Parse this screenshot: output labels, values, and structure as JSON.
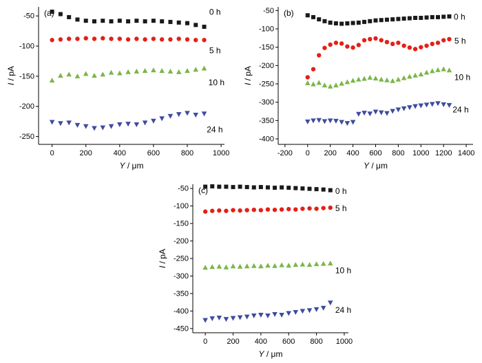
{
  "page": {
    "background": "#ffffff"
  },
  "chart_data": [
    {
      "id": "panel-a",
      "type": "scatter",
      "panel_label": "(a)",
      "xlabel": "Y / μm",
      "ylabel": "I / pA",
      "xlim": [
        -80,
        1020
      ],
      "ylim": [
        -263,
        -35
      ],
      "xticks": [
        0,
        200,
        400,
        600,
        800,
        1000
      ],
      "yticks": [
        -250,
        -200,
        -150,
        -100,
        -50
      ],
      "grid": false,
      "x": [
        0,
        50,
        100,
        150,
        200,
        250,
        300,
        350,
        400,
        450,
        500,
        550,
        600,
        650,
        700,
        750,
        800,
        850,
        900
      ],
      "series": [
        {
          "name": "0 h",
          "marker": "square",
          "color": "#1a1a1a",
          "label_pos": [
            930,
            -48
          ],
          "values": [
            -43,
            -47,
            -52,
            -56,
            -58,
            -59,
            -58,
            -59,
            -58,
            -59,
            -58,
            -59,
            -58,
            -59,
            -60,
            -61,
            -62,
            -65,
            -68
          ]
        },
        {
          "name": "5 h",
          "marker": "circle",
          "color": "#e32017",
          "label_pos": [
            930,
            -112
          ],
          "values": [
            -90,
            -89,
            -88,
            -88,
            -87,
            -88,
            -87,
            -88,
            -88,
            -89,
            -88,
            -89,
            -88,
            -89,
            -89,
            -88,
            -89,
            -90,
            -90
          ]
        },
        {
          "name": "10 h",
          "marker": "triangle-up",
          "color": "#7ab648",
          "label_pos": [
            925,
            -165
          ],
          "values": [
            -157,
            -149,
            -147,
            -150,
            -146,
            -149,
            -147,
            -144,
            -145,
            -143,
            -142,
            -141,
            -140,
            -141,
            -142,
            -143,
            -141,
            -139,
            -137
          ]
        },
        {
          "name": "24 h",
          "marker": "triangle-down",
          "color": "#3f4b9d",
          "label_pos": [
            915,
            -243
          ],
          "values": [
            -226,
            -228,
            -227,
            -231,
            -233,
            -236,
            -235,
            -233,
            -230,
            -229,
            -230,
            -227,
            -224,
            -220,
            -216,
            -213,
            -211,
            -214,
            -212
          ]
        }
      ],
      "margins": {
        "l": 48,
        "r": 12,
        "t": 8,
        "b": 42
      }
    },
    {
      "id": "panel-b",
      "type": "scatter",
      "panel_label": "(b)",
      "xlabel": "Y / μm",
      "ylabel": "I / pA",
      "xlim": [
        -260,
        1460
      ],
      "ylim": [
        -415,
        -40
      ],
      "xticks": [
        -200,
        0,
        200,
        400,
        600,
        800,
        1000,
        1200,
        1400
      ],
      "yticks": [
        -400,
        -350,
        -300,
        -250,
        -200,
        -150,
        -100,
        -50
      ],
      "grid": false,
      "x": [
        0,
        50,
        100,
        150,
        200,
        250,
        300,
        350,
        400,
        450,
        500,
        550,
        600,
        650,
        700,
        750,
        800,
        850,
        900,
        950,
        1000,
        1050,
        1100,
        1150,
        1200,
        1250
      ],
      "series": [
        {
          "name": "0 h",
          "marker": "square",
          "color": "#1a1a1a",
          "label_pos": [
            1290,
            -75
          ],
          "values": [
            -63,
            -68,
            -74,
            -79,
            -83,
            -85,
            -86,
            -85,
            -84,
            -83,
            -81,
            -79,
            -77,
            -76,
            -75,
            -74,
            -73,
            -72,
            -71,
            -70,
            -70,
            -69,
            -68,
            -68,
            -67,
            -66
          ]
        },
        {
          "name": "5 h",
          "marker": "circle",
          "color": "#e32017",
          "label_pos": [
            1295,
            -140
          ],
          "values": [
            -232,
            -210,
            -172,
            -152,
            -143,
            -138,
            -140,
            -148,
            -151,
            -144,
            -131,
            -128,
            -126,
            -131,
            -136,
            -141,
            -138,
            -146,
            -151,
            -155,
            -150,
            -146,
            -141,
            -138,
            -131,
            -128
          ]
        },
        {
          "name": "10 h",
          "marker": "triangle-up",
          "color": "#7ab648",
          "label_pos": [
            1295,
            -240
          ],
          "values": [
            -248,
            -251,
            -247,
            -254,
            -257,
            -254,
            -249,
            -245,
            -241,
            -238,
            -236,
            -233,
            -235,
            -238,
            -240,
            -242,
            -238,
            -234,
            -230,
            -227,
            -224,
            -219,
            -215,
            -212,
            -210,
            -213
          ]
        },
        {
          "name": "24 h",
          "marker": "triangle-down",
          "color": "#3f4b9d",
          "label_pos": [
            1280,
            -328
          ],
          "values": [
            -353,
            -350,
            -349,
            -352,
            -350,
            -351,
            -354,
            -357,
            -354,
            -332,
            -329,
            -331,
            -326,
            -328,
            -330,
            -324,
            -320,
            -317,
            -314,
            -311,
            -309,
            -307,
            -305,
            -303,
            -306,
            -308
          ]
        }
      ],
      "margins": {
        "l": 52,
        "r": 10,
        "t": 8,
        "b": 42
      }
    },
    {
      "id": "panel-c",
      "type": "scatter",
      "panel_label": "(c)",
      "xlabel": "Y / μm",
      "ylabel": "I / pA",
      "xlim": [
        -90,
        1030
      ],
      "ylim": [
        -462,
        -38
      ],
      "xticks": [
        0,
        200,
        400,
        600,
        800,
        1000
      ],
      "yticks": [
        -450,
        -400,
        -350,
        -300,
        -250,
        -200,
        -150,
        -100,
        -50
      ],
      "grid": false,
      "x": [
        0,
        50,
        100,
        150,
        200,
        250,
        300,
        350,
        400,
        450,
        500,
        550,
        600,
        650,
        700,
        750,
        800,
        850,
        900
      ],
      "series": [
        {
          "name": "0 h",
          "marker": "square",
          "color": "#1a1a1a",
          "label_pos": [
            935,
            -65
          ],
          "values": [
            -45,
            -44,
            -45,
            -45,
            -46,
            -45,
            -46,
            -47,
            -46,
            -47,
            -48,
            -47,
            -48,
            -49,
            -50,
            -51,
            -52,
            -53,
            -55
          ]
        },
        {
          "name": "5 h",
          "marker": "circle",
          "color": "#e32017",
          "label_pos": [
            935,
            -115
          ],
          "values": [
            -116,
            -114,
            -113,
            -114,
            -112,
            -113,
            -112,
            -111,
            -112,
            -110,
            -111,
            -110,
            -109,
            -110,
            -108,
            -107,
            -108,
            -106,
            -105
          ]
        },
        {
          "name": "10 h",
          "marker": "triangle-up",
          "color": "#7ab648",
          "label_pos": [
            935,
            -292
          ],
          "values": [
            -276,
            -274,
            -273,
            -275,
            -272,
            -273,
            -272,
            -271,
            -272,
            -270,
            -271,
            -269,
            -270,
            -268,
            -267,
            -268,
            -266,
            -265,
            -264
          ]
        },
        {
          "name": "24 h",
          "marker": "triangle-down",
          "color": "#3f4b9d",
          "label_pos": [
            935,
            -405
          ],
          "values": [
            -426,
            -421,
            -419,
            -423,
            -420,
            -418,
            -416,
            -413,
            -411,
            -413,
            -409,
            -411,
            -406,
            -403,
            -400,
            -398,
            -395,
            -391,
            -376
          ]
        }
      ],
      "margins": {
        "l": 52,
        "r": 12,
        "t": 6,
        "b": 42
      }
    }
  ]
}
